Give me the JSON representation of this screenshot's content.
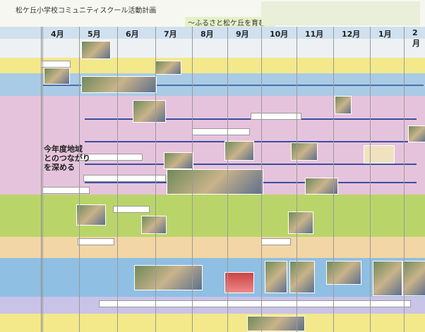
{
  "header": {
    "title": "松ケ丘小学校コミュニティスクール活動計画",
    "subtitle": "～ふるさと松ケ丘を育む～"
  },
  "months": [
    "4月",
    "5月",
    "6月",
    "7月",
    "8月",
    "9月",
    "10月",
    "11月",
    "12月",
    "1月",
    "2月"
  ],
  "note": [
    "今年度地域",
    "とのつながり",
    "を深める"
  ]
}
